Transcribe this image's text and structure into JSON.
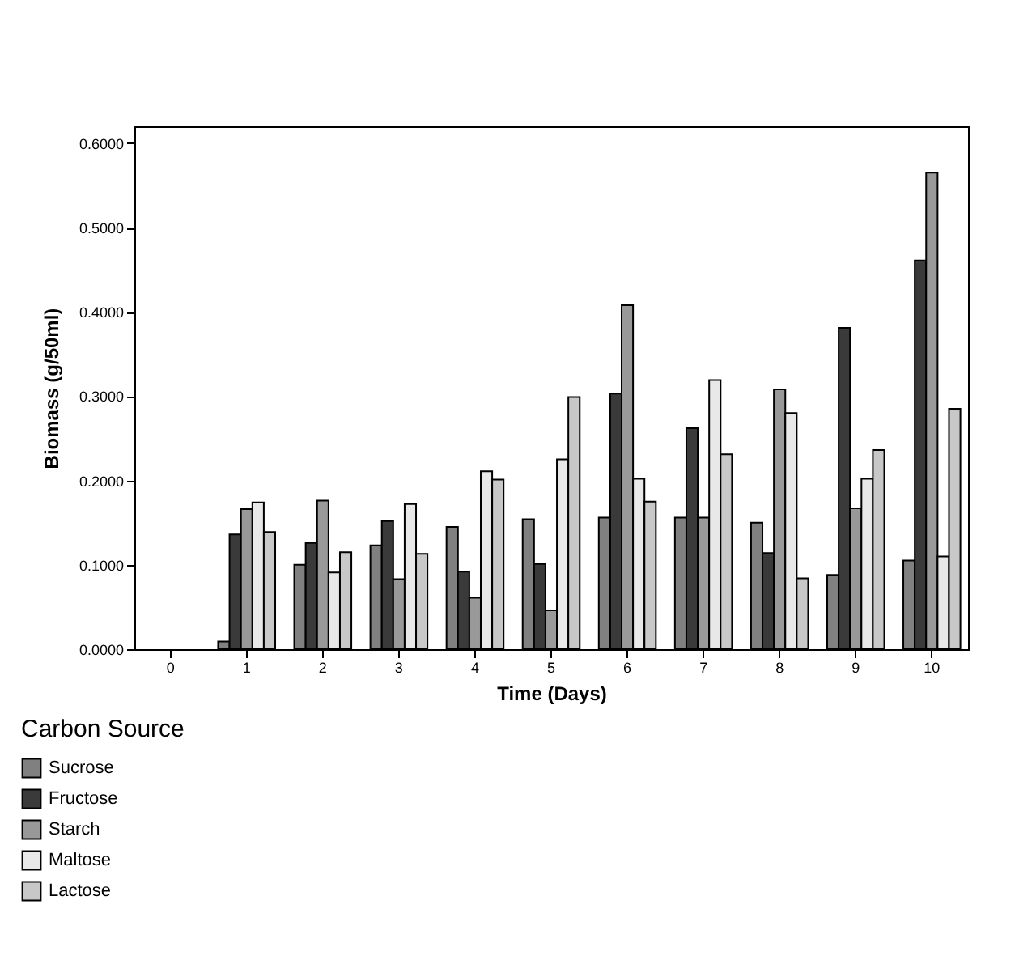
{
  "chart_data": {
    "type": "bar",
    "xlabel": "Time (Days)",
    "ylabel": "Biomass (g/50ml)",
    "legend_title": "Carbon Source",
    "categories": [
      "0",
      "1",
      "2",
      "3",
      "4",
      "5",
      "6",
      "7",
      "8",
      "9",
      "10"
    ],
    "series": [
      {
        "name": "Sucrose",
        "color": "#808080",
        "values": [
          null,
          0.009,
          0.1,
          0.123,
          0.145,
          0.154,
          0.156,
          0.156,
          0.15,
          0.088,
          0.105
        ]
      },
      {
        "name": "Fructose",
        "color": "#3a3a3a",
        "values": [
          null,
          0.136,
          0.126,
          0.152,
          0.092,
          0.101,
          0.303,
          0.262,
          0.114,
          0.381,
          0.461
        ]
      },
      {
        "name": "Starch",
        "color": "#999999",
        "values": [
          null,
          0.166,
          0.176,
          0.083,
          0.061,
          0.046,
          0.408,
          0.156,
          0.308,
          0.167,
          0.565
        ]
      },
      {
        "name": "Maltose",
        "color": "#e8e8e8",
        "values": [
          null,
          0.174,
          0.091,
          0.172,
          0.211,
          0.225,
          0.202,
          0.319,
          0.28,
          0.202,
          0.11
        ]
      },
      {
        "name": "Lactose",
        "color": "#c8c8c8",
        "values": [
          null,
          0.139,
          0.115,
          0.113,
          0.201,
          0.299,
          0.175,
          0.231,
          0.084,
          0.236,
          0.285
        ]
      }
    ],
    "ylim": [
      0,
      0.62
    ],
    "yticks": [
      {
        "value": 0,
        "label": "0.0000"
      },
      {
        "value": 0.1,
        "label": "0.1000"
      },
      {
        "value": 0.2,
        "label": "0.2000"
      },
      {
        "value": 0.3,
        "label": "0.3000"
      },
      {
        "value": 0.4,
        "label": "0.4000"
      },
      {
        "value": 0.5,
        "label": "0.5000"
      },
      {
        "value": 0.6,
        "label": "0.6000"
      }
    ],
    "legend": "bottom left"
  }
}
